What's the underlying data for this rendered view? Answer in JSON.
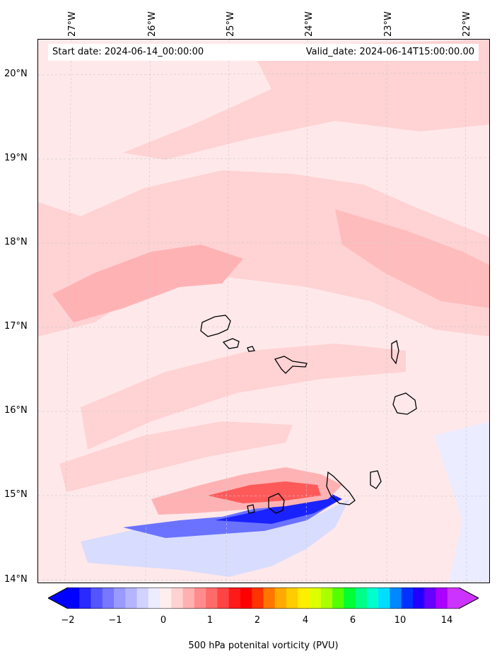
{
  "map": {
    "start_date_label": "Start date: 2024-06-14_00:00:00",
    "valid_date_label": "Valid_date: 2024-06-14T15:00:00.00",
    "longitude_labels": [
      "27°W",
      "26°W",
      "25°W",
      "24°W",
      "23°W",
      "22°W"
    ],
    "latitude_labels": [
      "20°N",
      "19°N",
      "18°N",
      "17°N",
      "16°N",
      "15°N",
      "14°N"
    ],
    "colorbar": {
      "title": "500 hPa potenital vorticity (PVU)",
      "tick_labels": [
        "−2",
        "−1",
        "0",
        "1",
        "2",
        "4",
        "6",
        "10",
        "14"
      ],
      "colors": [
        "#0000ff",
        "#2a2aff",
        "#5555ff",
        "#7777ff",
        "#9999ff",
        "#b4b4ff",
        "#d2d2ff",
        "#ececff",
        "#ffeeee",
        "#ffd2d2",
        "#ffb0b0",
        "#ff8c8c",
        "#ff6a6a",
        "#ff4444",
        "#ff1a1a",
        "#ff0000",
        "#ff3300",
        "#ff7700",
        "#ffaa00",
        "#ffcc00",
        "#ffee00",
        "#ddff00",
        "#aaff00",
        "#55ff00",
        "#00ff33",
        "#00ff88",
        "#00ffcc",
        "#00ddff",
        "#0088ff",
        "#0033ff",
        "#2200ff",
        "#6600ff",
        "#aa00ff",
        "#cc33ff"
      ],
      "extend_left_color": "#0000ff",
      "extend_right_color": "#cc33ff"
    },
    "field_colors": {
      "background": "#ffe8ea",
      "light_pink": "#ffd2d4",
      "pink": "#ffb2b4",
      "red": "#ff5a5a",
      "light_blue": "#d8dcff",
      "blue": "#6a72ff",
      "deep_blue": "#1a22ff",
      "coastline": "#000000"
    }
  }
}
